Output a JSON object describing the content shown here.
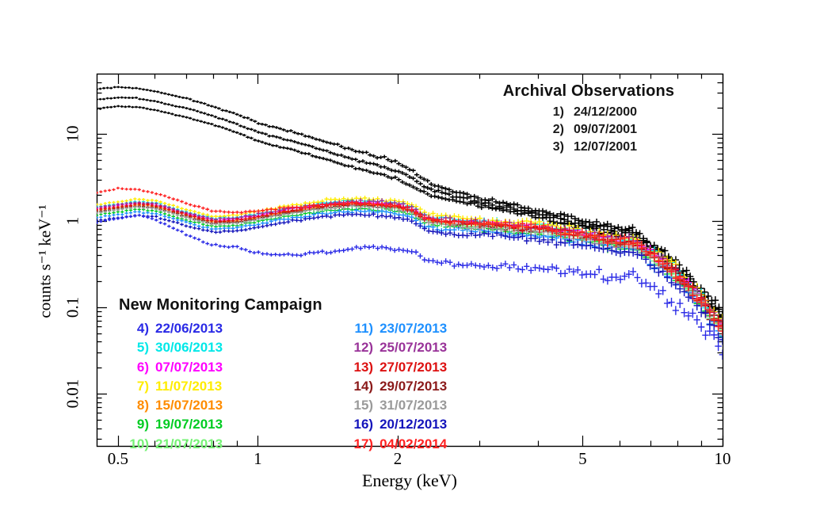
{
  "figure": {
    "background": "#ffffff"
  },
  "legend_archival": {
    "title": "Archival Observations"
  },
  "legend_monitoring": {
    "title": "New Monitoring Campaign"
  },
  "chart_data": {
    "type": "scatter",
    "marker": "plus-with-error-bars",
    "title": "",
    "xlabel": "Energy (keV)",
    "ylabel": "counts s⁻¹ keV⁻¹",
    "xscale": "log",
    "yscale": "log",
    "xlim": [
      0.45,
      10
    ],
    "ylim": [
      0.0025,
      50
    ],
    "grid": false,
    "x_ticks": [
      {
        "value": 0.5,
        "label": "0.5"
      },
      {
        "value": 1,
        "label": "1"
      },
      {
        "value": 2,
        "label": "2"
      },
      {
        "value": 5,
        "label": "5"
      },
      {
        "value": 10,
        "label": "10"
      }
    ],
    "x_minor_ticks": [
      0.6,
      0.7,
      0.8,
      0.9,
      3,
      4,
      6,
      7,
      8,
      9
    ],
    "y_ticks": [
      {
        "value": 10,
        "label": "10"
      },
      {
        "value": 1,
        "label": "1"
      },
      {
        "value": 0.1,
        "label": "0.1"
      },
      {
        "value": 0.01,
        "label": "0.01"
      }
    ],
    "y_minor_ticks": [
      0.003,
      0.004,
      0.005,
      0.006,
      0.007,
      0.008,
      0.009,
      0.02,
      0.03,
      0.04,
      0.05,
      0.06,
      0.07,
      0.08,
      0.09,
      0.2,
      0.3,
      0.4,
      0.5,
      0.6,
      0.7,
      0.8,
      0.9,
      2,
      3,
      4,
      5,
      6,
      7,
      8,
      9,
      20,
      30,
      40
    ],
    "energies_keV": [
      0.45,
      0.5,
      0.55,
      0.6,
      0.7,
      0.8,
      0.9,
      1.0,
      1.2,
      1.4,
      1.6,
      1.8,
      2.0,
      2.15,
      2.3,
      2.5,
      2.8,
      3.2,
      3.6,
      4.0,
      4.5,
      5.0,
      5.5,
      6.0,
      6.4,
      6.8,
      7.5,
      8.5,
      10
    ],
    "series": [
      {
        "id": 1,
        "group": "archival",
        "label": "24/12/2000",
        "color": "#000000",
        "counts": [
          33,
          35,
          34,
          31,
          26,
          21,
          17,
          13.5,
          10.5,
          8.2,
          6.6,
          5.6,
          4.7,
          3.9,
          2.9,
          2.4,
          2.0,
          1.7,
          1.5,
          1.35,
          1.15,
          1.0,
          0.88,
          0.78,
          0.8,
          0.6,
          0.42,
          0.22,
          0.085
        ]
      },
      {
        "id": 2,
        "group": "archival",
        "label": "09/07/2001",
        "color": "#000000",
        "counts": [
          25,
          26.5,
          26,
          24,
          20,
          16.3,
          13.2,
          10.5,
          8.2,
          6.4,
          5.2,
          4.4,
          3.7,
          3.1,
          2.4,
          2.05,
          1.78,
          1.52,
          1.36,
          1.22,
          1.05,
          0.93,
          0.82,
          0.73,
          0.75,
          0.57,
          0.4,
          0.21,
          0.08
        ]
      },
      {
        "id": 3,
        "group": "archival",
        "label": "12/07/2001",
        "color": "#000000",
        "counts": [
          19.5,
          21,
          20.5,
          19,
          15.8,
          12.9,
          10.5,
          8.3,
          6.5,
          5.1,
          4.2,
          3.55,
          3.0,
          2.5,
          2.05,
          1.8,
          1.58,
          1.38,
          1.24,
          1.12,
          0.97,
          0.86,
          0.76,
          0.68,
          0.7,
          0.54,
          0.38,
          0.2,
          0.077
        ]
      },
      {
        "id": 4,
        "group": "monitoring",
        "label": "22/06/2013",
        "color": "#2a2ae6",
        "counts": [
          0.95,
          1.05,
          1.15,
          1.05,
          0.7,
          0.52,
          0.5,
          0.42,
          0.4,
          0.43,
          0.47,
          0.5,
          0.47,
          0.44,
          0.36,
          0.33,
          0.31,
          0.3,
          0.29,
          0.28,
          0.27,
          0.26,
          0.24,
          0.22,
          0.26,
          0.19,
          0.14,
          0.08,
          0.032
        ]
      },
      {
        "id": 5,
        "group": "monitoring",
        "label": "30/06/2013",
        "color": "#00e8e8",
        "counts": [
          1.44,
          1.55,
          1.67,
          1.61,
          1.27,
          1.06,
          1.09,
          1.21,
          1.44,
          1.61,
          1.7,
          1.67,
          1.59,
          1.44,
          1.13,
          1.06,
          1.01,
          0.97,
          0.92,
          0.87,
          0.81,
          0.74,
          0.67,
          0.6,
          0.63,
          0.48,
          0.35,
          0.18,
          0.063
        ]
      },
      {
        "id": 6,
        "group": "monitoring",
        "label": "07/07/2013",
        "color": "#ff00ff",
        "counts": [
          1.38,
          1.49,
          1.6,
          1.54,
          1.21,
          1.01,
          1.05,
          1.16,
          1.38,
          1.54,
          1.63,
          1.6,
          1.52,
          1.38,
          1.08,
          1.01,
          0.97,
          0.92,
          0.88,
          0.84,
          0.77,
          0.7,
          0.64,
          0.57,
          0.61,
          0.46,
          0.33,
          0.176,
          0.061
        ]
      },
      {
        "id": 7,
        "group": "monitoring",
        "label": "11/07/2013",
        "color": "#ffec00",
        "counts": [
          1.53,
          1.65,
          1.77,
          1.71,
          1.34,
          1.12,
          1.16,
          1.28,
          1.53,
          1.71,
          1.81,
          1.77,
          1.68,
          1.53,
          1.2,
          1.12,
          1.07,
          1.02,
          0.98,
          0.93,
          0.85,
          0.78,
          0.71,
          0.63,
          0.67,
          0.51,
          0.37,
          0.195,
          0.067
        ]
      },
      {
        "id": 8,
        "group": "monitoring",
        "label": "15/07/2013",
        "color": "#ff8c00",
        "counts": [
          1.31,
          1.42,
          1.52,
          1.47,
          1.16,
          0.97,
          1.0,
          1.1,
          1.31,
          1.47,
          1.55,
          1.52,
          1.45,
          1.31,
          1.03,
          0.97,
          0.92,
          0.88,
          0.84,
          0.8,
          0.74,
          0.67,
          0.61,
          0.55,
          0.58,
          0.44,
          0.32,
          0.168,
          0.058
        ]
      },
      {
        "id": 9,
        "group": "monitoring",
        "label": "19/07/2013",
        "color": "#00cc22",
        "counts": [
          1.16,
          1.26,
          1.35,
          1.3,
          1.02,
          0.86,
          0.88,
          0.98,
          1.16,
          1.3,
          1.38,
          1.35,
          1.28,
          1.16,
          0.91,
          0.86,
          0.82,
          0.78,
          0.74,
          0.71,
          0.65,
          0.6,
          0.54,
          0.48,
          0.51,
          0.39,
          0.28,
          0.149,
          0.051
        ]
      },
      {
        "id": 10,
        "group": "monitoring",
        "label": "21/07/2013",
        "color": "#76f276",
        "counts": [
          1.25,
          1.35,
          1.45,
          1.4,
          1.1,
          0.92,
          0.95,
          1.05,
          1.25,
          1.4,
          1.48,
          1.45,
          1.38,
          1.25,
          0.98,
          0.92,
          0.88,
          0.84,
          0.8,
          0.76,
          0.7,
          0.64,
          0.58,
          0.52,
          0.55,
          0.42,
          0.3,
          0.16,
          0.055
        ]
      },
      {
        "id": 11,
        "group": "monitoring",
        "label": "23/07/2013",
        "color": "#1e90ff",
        "counts": [
          1.09,
          1.17,
          1.26,
          1.22,
          0.96,
          0.8,
          0.83,
          0.91,
          1.09,
          1.22,
          1.29,
          1.26,
          1.2,
          1.09,
          0.85,
          0.8,
          0.77,
          0.73,
          0.7,
          0.66,
          0.61,
          0.56,
          0.5,
          0.45,
          0.48,
          0.37,
          0.26,
          0.139,
          0.048
        ]
      },
      {
        "id": 12,
        "group": "monitoring",
        "label": "25/07/2013",
        "color": "#993399",
        "counts": [
          1.41,
          1.53,
          1.64,
          1.58,
          1.24,
          1.04,
          1.07,
          1.19,
          1.41,
          1.58,
          1.67,
          1.64,
          1.56,
          1.41,
          1.11,
          1.04,
          0.99,
          0.95,
          0.9,
          0.86,
          0.79,
          0.72,
          0.66,
          0.59,
          0.62,
          0.47,
          0.34,
          0.181,
          0.062
        ]
      },
      {
        "id": 13,
        "group": "monitoring",
        "label": "27/07/2013",
        "color": "#dd1111",
        "counts": [
          1.34,
          1.44,
          1.55,
          1.5,
          1.18,
          0.98,
          1.02,
          1.12,
          1.34,
          1.5,
          1.58,
          1.55,
          1.48,
          1.34,
          1.05,
          0.98,
          0.94,
          0.9,
          0.86,
          0.81,
          0.75,
          0.68,
          0.62,
          0.56,
          0.59,
          0.45,
          0.32,
          0.171,
          0.059
        ]
      },
      {
        "id": 14,
        "group": "monitoring",
        "label": "29/07/2013",
        "color": "#8b1a1a",
        "counts": [
          1.28,
          1.38,
          1.48,
          1.43,
          1.12,
          0.94,
          0.97,
          1.07,
          1.28,
          1.43,
          1.51,
          1.48,
          1.41,
          1.28,
          1.0,
          0.94,
          0.9,
          0.86,
          0.82,
          0.78,
          0.71,
          0.65,
          0.59,
          0.53,
          0.56,
          0.43,
          0.31,
          0.163,
          0.056
        ]
      },
      {
        "id": 15,
        "group": "monitoring",
        "label": "31/07/2013",
        "color": "#9a9a9a",
        "counts": [
          1.24,
          1.34,
          1.44,
          1.39,
          1.09,
          0.91,
          0.94,
          1.04,
          1.24,
          1.39,
          1.47,
          1.44,
          1.37,
          1.24,
          0.97,
          0.91,
          0.87,
          0.83,
          0.79,
          0.75,
          0.69,
          0.63,
          0.57,
          0.51,
          0.54,
          0.42,
          0.3,
          0.158,
          0.054
        ]
      },
      {
        "id": 16,
        "group": "monitoring",
        "label": "20/12/2013",
        "color": "#1414bb",
        "counts": [
          1.0,
          1.08,
          1.16,
          1.12,
          0.88,
          0.74,
          0.76,
          0.84,
          1.0,
          1.12,
          1.18,
          1.16,
          1.1,
          1.0,
          0.78,
          0.74,
          0.7,
          0.67,
          0.64,
          0.61,
          0.56,
          0.51,
          0.46,
          0.42,
          0.44,
          0.34,
          0.24,
          0.128,
          0.044
        ]
      },
      {
        "id": 17,
        "group": "monitoring",
        "label": "04/02/2014",
        "color": "#ff2222",
        "counts": [
          2.1,
          2.35,
          2.3,
          2.1,
          1.6,
          1.3,
          1.25,
          1.3,
          1.45,
          1.55,
          1.6,
          1.55,
          1.47,
          1.33,
          1.05,
          1.0,
          0.96,
          0.92,
          0.88,
          0.83,
          0.76,
          0.69,
          0.62,
          0.55,
          0.58,
          0.44,
          0.31,
          0.165,
          0.057
        ]
      }
    ]
  }
}
